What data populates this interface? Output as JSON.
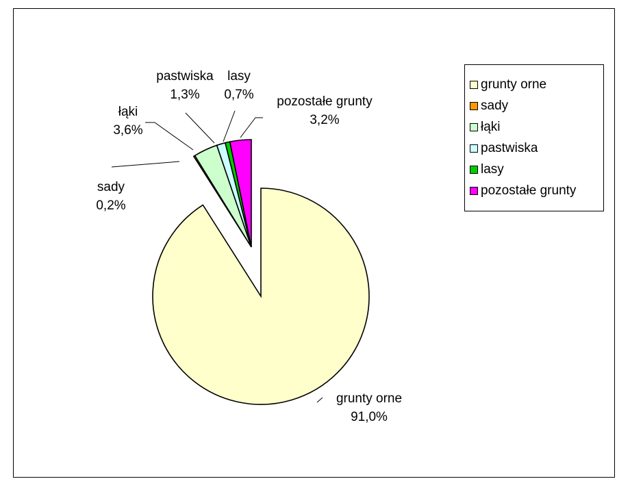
{
  "chart_data": {
    "type": "pie",
    "title": "",
    "exploded": true,
    "legend_placement": "right",
    "slices": [
      {
        "name": "grunty orne",
        "value": 91.0,
        "label": "91,0%",
        "color": "#FFFFCC"
      },
      {
        "name": "sady",
        "value": 0.2,
        "label": "0,2%",
        "color": "#FF9900"
      },
      {
        "name": "łąki",
        "value": 3.6,
        "label": "3,6%",
        "color": "#CCFFCC"
      },
      {
        "name": "pastwiska",
        "value": 1.3,
        "label": "1,3%",
        "color": "#CCFFFF"
      },
      {
        "name": "lasy",
        "value": 0.7,
        "label": "0,7%",
        "color": "#00CC00"
      },
      {
        "name": "pozostałe grunty",
        "value": 3.2,
        "label": "3,2%",
        "color": "#FF00FF"
      }
    ]
  }
}
